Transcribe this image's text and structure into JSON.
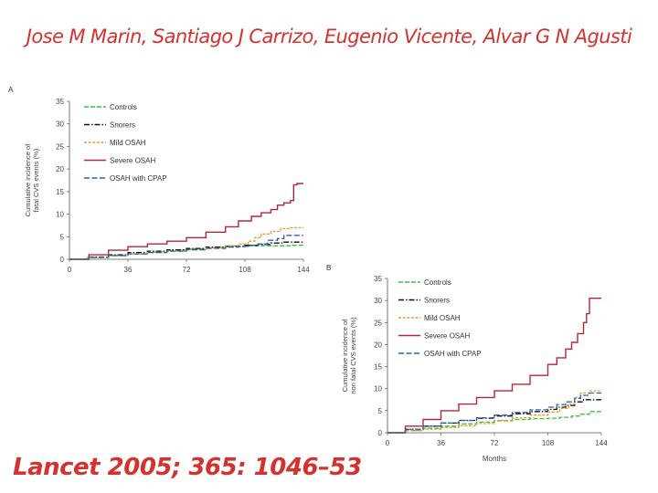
{
  "slide": {
    "authors": "Jose M Marin, Santiago J Carrizo, Eugenio Vicente, Alvar G N Agusti",
    "citation": "Lancet 2005; 365: 1046–53"
  },
  "colors": {
    "accent": "#d5312f",
    "controls": "#3fbf3f",
    "snorers": "#111111",
    "mild": "#e39b2c",
    "severe": "#b0283a",
    "cpap": "#2c63b0"
  },
  "chart_data": [
    {
      "type": "line",
      "panel": "A",
      "title": "",
      "xlabel": "",
      "ylabel": "Cumulative incidence of fatal CVS events (%)",
      "ylabel_lines": [
        "Cumulative incidence of",
        "fatal CVS events (%)"
      ],
      "xlim": [
        0,
        144
      ],
      "ylim": [
        0,
        35
      ],
      "xticks": [
        0,
        36,
        72,
        108,
        144
      ],
      "yticks": [
        0,
        5,
        10,
        15,
        20,
        25,
        30,
        35
      ],
      "legend": "top-left",
      "series": [
        {
          "name": "Controls",
          "key": "controls",
          "dash": "5,2",
          "x": [
            0,
            10,
            24,
            36,
            48,
            60,
            72,
            84,
            96,
            108,
            114,
            120,
            128,
            136,
            144
          ],
          "y": [
            0,
            0.4,
            0.8,
            1.2,
            1.6,
            2.0,
            2.3,
            2.6,
            2.8,
            3.0,
            3.0,
            3.0,
            3.0,
            3.1,
            3.1
          ]
        },
        {
          "name": "Snorers",
          "key": "snorers",
          "dash": "6,2,1.5,2",
          "x": [
            0,
            12,
            24,
            36,
            48,
            60,
            72,
            84,
            96,
            108,
            116,
            124,
            132,
            144
          ],
          "y": [
            0,
            0.5,
            1.0,
            1.5,
            1.8,
            2.1,
            2.4,
            2.7,
            2.9,
            3.1,
            3.3,
            3.6,
            3.8,
            3.8
          ]
        },
        {
          "name": "Mild OSAH",
          "key": "mild",
          "dash": "3,1.6",
          "x": [
            0,
            12,
            24,
            36,
            48,
            60,
            72,
            84,
            96,
            104,
            110,
            114,
            118,
            124,
            130,
            136,
            144
          ],
          "y": [
            0,
            0.4,
            0.8,
            1.2,
            1.5,
            1.8,
            2.1,
            2.5,
            3.0,
            3.4,
            4.0,
            4.8,
            5.6,
            6.2,
            6.8,
            7.0,
            7.0
          ]
        },
        {
          "name": "Severe OSAH",
          "key": "severe",
          "dash": "",
          "x": [
            0,
            12,
            24,
            36,
            48,
            60,
            72,
            84,
            96,
            104,
            112,
            118,
            124,
            128,
            132,
            136,
            138,
            140,
            144
          ],
          "y": [
            0,
            1.0,
            2.0,
            2.8,
            3.4,
            4.0,
            4.8,
            6.0,
            7.2,
            8.5,
            9.5,
            10.3,
            11.0,
            12.0,
            12.5,
            13.0,
            16.5,
            16.8,
            16.8
          ]
        },
        {
          "name": "OSAH with CPAP",
          "key": "cpap",
          "dash": "6,2.5",
          "x": [
            0,
            12,
            24,
            36,
            48,
            60,
            72,
            84,
            96,
            104,
            110,
            116,
            122,
            128,
            132,
            144
          ],
          "y": [
            0,
            0.4,
            0.8,
            1.2,
            1.5,
            1.8,
            2.1,
            2.4,
            2.7,
            2.9,
            3.1,
            3.4,
            4.2,
            4.6,
            5.3,
            5.3
          ]
        }
      ]
    },
    {
      "type": "line",
      "panel": "B",
      "title": "",
      "xlabel": "Months",
      "ylabel": "Cumulative incidence of non fatal CVS events (%)",
      "ylabel_lines": [
        "Cumulative incidence of",
        "non fatal CVS events (%)"
      ],
      "xlim": [
        0,
        144
      ],
      "ylim": [
        0,
        35
      ],
      "xticks": [
        0,
        36,
        72,
        108,
        144
      ],
      "yticks": [
        0,
        5,
        10,
        15,
        20,
        25,
        30,
        35
      ],
      "legend": "top-left",
      "series": [
        {
          "name": "Controls",
          "key": "controls",
          "dash": "5,2",
          "x": [
            0,
            12,
            24,
            36,
            48,
            60,
            72,
            84,
            96,
            108,
            116,
            124,
            130,
            136,
            144
          ],
          "y": [
            0,
            0.5,
            1.0,
            1.5,
            2.0,
            2.4,
            2.7,
            3.0,
            3.2,
            3.3,
            3.5,
            3.8,
            4.2,
            4.8,
            5.0
          ]
        },
        {
          "name": "Snorers",
          "key": "snorers",
          "dash": "6,2,1.5,2",
          "x": [
            0,
            12,
            24,
            36,
            48,
            60,
            72,
            84,
            96,
            108,
            114,
            120,
            126,
            132,
            144
          ],
          "y": [
            0,
            0.8,
            1.5,
            2.2,
            2.8,
            3.3,
            3.8,
            4.3,
            4.8,
            5.3,
            5.8,
            6.2,
            7.0,
            7.5,
            7.5
          ]
        },
        {
          "name": "Mild OSAH",
          "key": "mild",
          "dash": "3,1.6",
          "x": [
            0,
            12,
            24,
            36,
            48,
            60,
            72,
            84,
            96,
            108,
            116,
            122,
            126,
            130,
            136,
            144
          ],
          "y": [
            0,
            0.5,
            0.8,
            1.2,
            1.6,
            2.1,
            2.8,
            3.4,
            4.0,
            4.7,
            5.5,
            6.5,
            8.0,
            9.0,
            9.5,
            9.5
          ]
        },
        {
          "name": "Severe OSAH",
          "key": "severe",
          "dash": "",
          "x": [
            0,
            12,
            24,
            36,
            48,
            60,
            72,
            84,
            96,
            108,
            114,
            120,
            124,
            128,
            132,
            134,
            136,
            144
          ],
          "y": [
            0,
            1.5,
            3.0,
            5.0,
            6.5,
            8.0,
            9.5,
            11.0,
            13.0,
            15.5,
            17.0,
            19.0,
            20.5,
            22.5,
            25.0,
            27.0,
            30.5,
            30.5
          ]
        },
        {
          "name": "OSAH with CPAP",
          "key": "cpap",
          "dash": "6,2.5",
          "x": [
            0,
            12,
            24,
            36,
            48,
            60,
            72,
            84,
            96,
            108,
            114,
            120,
            126,
            130,
            136,
            144
          ],
          "y": [
            0,
            0.8,
            1.5,
            2.2,
            2.8,
            3.4,
            4.0,
            4.6,
            5.2,
            5.8,
            6.4,
            7.0,
            7.8,
            8.5,
            9.0,
            9.0
          ]
        }
      ]
    }
  ]
}
